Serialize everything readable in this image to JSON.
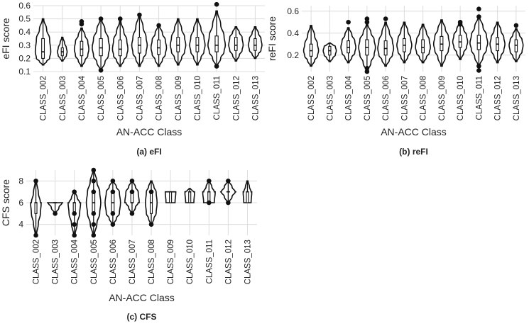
{
  "colors": {
    "ink": "#111111",
    "grid": "#dcdcdc",
    "background": "#ffffff"
  },
  "chart_data": [
    {
      "type": "violin",
      "panel_id": "a",
      "caption": "(a) eFI",
      "title": "",
      "xlabel": "AN-ACC Class",
      "ylabel": "eFI score",
      "ylim": [
        0.1,
        0.6
      ],
      "yticks": [
        0.1,
        0.2,
        0.3,
        0.4,
        0.5,
        0.6
      ],
      "categories": [
        "CLASS_002",
        "CLASS_003",
        "CLASS_004",
        "CLASS_005",
        "CLASS_006",
        "CLASS_007",
        "CLASS_008",
        "CLASS_009",
        "CLASS_010",
        "CLASS_011",
        "CLASS_012",
        "CLASS_013"
      ],
      "series": [
        {
          "category": "CLASS_002",
          "min": 0.15,
          "q1": 0.2,
          "median": 0.25,
          "q3": 0.35,
          "max": 0.5,
          "width": 0.8,
          "outliers": []
        },
        {
          "category": "CLASS_003",
          "min": 0.18,
          "q1": 0.22,
          "median": 0.25,
          "q3": 0.28,
          "max": 0.36,
          "width": 0.5,
          "outliers": []
        },
        {
          "category": "CLASS_004",
          "min": 0.14,
          "q1": 0.22,
          "median": 0.27,
          "q3": 0.33,
          "max": 0.43,
          "width": 0.75,
          "outliers": [
            0.46,
            0.48
          ]
        },
        {
          "category": "CLASS_005",
          "min": 0.11,
          "q1": 0.22,
          "median": 0.28,
          "q3": 0.35,
          "max": 0.5,
          "width": 0.9,
          "outliers": [
            0.11,
            0.5
          ]
        },
        {
          "category": "CLASS_006",
          "min": 0.14,
          "q1": 0.22,
          "median": 0.27,
          "q3": 0.34,
          "max": 0.48,
          "width": 0.8,
          "outliers": [
            0.5
          ]
        },
        {
          "category": "CLASS_007",
          "min": 0.14,
          "q1": 0.24,
          "median": 0.3,
          "q3": 0.36,
          "max": 0.53,
          "width": 0.8,
          "outliers": [
            0.53
          ]
        },
        {
          "category": "CLASS_008",
          "min": 0.14,
          "q1": 0.23,
          "median": 0.28,
          "q3": 0.34,
          "max": 0.45,
          "width": 0.8,
          "outliers": [
            0.45
          ]
        },
        {
          "category": "CLASS_009",
          "min": 0.15,
          "q1": 0.25,
          "median": 0.3,
          "q3": 0.36,
          "max": 0.5,
          "width": 0.8,
          "outliers": []
        },
        {
          "category": "CLASS_010",
          "min": 0.15,
          "q1": 0.25,
          "median": 0.3,
          "q3": 0.36,
          "max": 0.5,
          "width": 0.8,
          "outliers": []
        },
        {
          "category": "CLASS_011",
          "min": 0.14,
          "q1": 0.25,
          "median": 0.3,
          "q3": 0.37,
          "max": 0.56,
          "width": 0.9,
          "outliers": [
            0.14,
            0.61
          ]
        },
        {
          "category": "CLASS_012",
          "min": 0.18,
          "q1": 0.26,
          "median": 0.3,
          "q3": 0.36,
          "max": 0.44,
          "width": 0.75,
          "outliers": []
        },
        {
          "category": "CLASS_013",
          "min": 0.2,
          "q1": 0.26,
          "median": 0.3,
          "q3": 0.35,
          "max": 0.44,
          "width": 0.7,
          "outliers": []
        }
      ]
    },
    {
      "type": "violin",
      "panel_id": "b",
      "caption": "(b) reFI",
      "title": "",
      "xlabel": "AN-ACC Class",
      "ylabel": "reFI score",
      "ylim": [
        0.05,
        0.65
      ],
      "yticks": [
        0.2,
        0.4,
        0.6
      ],
      "categories": [
        "CLASS_002",
        "CLASS_003",
        "CLASS_004",
        "CLASS_005",
        "CLASS_006",
        "CLASS_007",
        "CLASS_008",
        "CLASS_009",
        "CLASS_010",
        "CLASS_011",
        "CLASS_012",
        "CLASS_013"
      ],
      "series": [
        {
          "category": "CLASS_002",
          "min": 0.1,
          "q1": 0.19,
          "median": 0.24,
          "q3": 0.3,
          "max": 0.47,
          "width": 0.8,
          "outliers": []
        },
        {
          "category": "CLASS_003",
          "min": 0.14,
          "q1": 0.2,
          "median": 0.24,
          "q3": 0.28,
          "max": 0.31,
          "width": 0.7,
          "outliers": []
        },
        {
          "category": "CLASS_004",
          "min": 0.13,
          "q1": 0.22,
          "median": 0.27,
          "q3": 0.33,
          "max": 0.45,
          "width": 0.8,
          "outliers": [
            0.5
          ]
        },
        {
          "category": "CLASS_005",
          "min": 0.05,
          "q1": 0.2,
          "median": 0.27,
          "q3": 0.34,
          "max": 0.48,
          "width": 0.9,
          "outliers": [
            0.05,
            0.08,
            0.5,
            0.53
          ]
        },
        {
          "category": "CLASS_006",
          "min": 0.1,
          "q1": 0.2,
          "median": 0.26,
          "q3": 0.33,
          "max": 0.5,
          "width": 0.85,
          "outliers": [
            0.53
          ]
        },
        {
          "category": "CLASS_007",
          "min": 0.13,
          "q1": 0.23,
          "median": 0.29,
          "q3": 0.35,
          "max": 0.5,
          "width": 0.8,
          "outliers": []
        },
        {
          "category": "CLASS_008",
          "min": 0.13,
          "q1": 0.22,
          "median": 0.27,
          "q3": 0.34,
          "max": 0.48,
          "width": 0.8,
          "outliers": []
        },
        {
          "category": "CLASS_009",
          "min": 0.1,
          "q1": 0.24,
          "median": 0.3,
          "q3": 0.37,
          "max": 0.52,
          "width": 0.85,
          "outliers": []
        },
        {
          "category": "CLASS_010",
          "min": 0.16,
          "q1": 0.27,
          "median": 0.32,
          "q3": 0.38,
          "max": 0.5,
          "width": 0.8,
          "outliers": [
            0.48,
            0.5
          ]
        },
        {
          "category": "CLASS_011",
          "min": 0.1,
          "q1": 0.25,
          "median": 0.31,
          "q3": 0.38,
          "max": 0.55,
          "width": 0.95,
          "outliers": [
            0.06,
            0.1,
            0.55,
            0.62
          ]
        },
        {
          "category": "CLASS_012",
          "min": 0.13,
          "q1": 0.24,
          "median": 0.3,
          "q3": 0.36,
          "max": 0.5,
          "width": 0.8,
          "outliers": []
        },
        {
          "category": "CLASS_013",
          "min": 0.14,
          "q1": 0.23,
          "median": 0.29,
          "q3": 0.34,
          "max": 0.44,
          "width": 0.75,
          "outliers": [
            0.47
          ]
        }
      ]
    },
    {
      "type": "violin",
      "panel_id": "c",
      "caption": "(c) CFS",
      "title": "",
      "xlabel": "AN-ACC Class",
      "ylabel": "CFS score",
      "ylim": [
        3,
        9
      ],
      "yticks": [
        4,
        6,
        8
      ],
      "categories": [
        "CLASS_002",
        "CLASS_003",
        "CLASS_004",
        "CLASS_005",
        "CLASS_006",
        "CLASS_007",
        "CLASS_008",
        "CLASS_009",
        "CLASS_010",
        "CLASS_011",
        "CLASS_012",
        "CLASS_013"
      ],
      "series": [
        {
          "category": "CLASS_002",
          "min": 3,
          "q1": 5,
          "median": 6,
          "q3": 6,
          "max": 8,
          "width": 0.55,
          "outliers": [
            3,
            8
          ]
        },
        {
          "category": "CLASS_003",
          "min": 5,
          "q1": 6,
          "median": 6,
          "q3": 6,
          "max": 6,
          "width": 0.85,
          "outliers": [
            5
          ]
        },
        {
          "category": "CLASS_004",
          "min": 3,
          "q1": 5,
          "median": 6,
          "q3": 6,
          "max": 7,
          "width": 0.65,
          "outliers": [
            3,
            4,
            5,
            7
          ]
        },
        {
          "category": "CLASS_005",
          "min": 3,
          "q1": 5,
          "median": 6,
          "q3": 7,
          "max": 9,
          "width": 0.75,
          "outliers": [
            3,
            4,
            5,
            7,
            8,
            9
          ]
        },
        {
          "category": "CLASS_006",
          "min": 4,
          "q1": 5,
          "median": 6,
          "q3": 7,
          "max": 8,
          "width": 0.8,
          "outliers": [
            4,
            5,
            7,
            8
          ]
        },
        {
          "category": "CLASS_007",
          "min": 5,
          "q1": 6,
          "median": 6,
          "q3": 7,
          "max": 8,
          "width": 0.75,
          "outliers": [
            5,
            7,
            8
          ]
        },
        {
          "category": "CLASS_008",
          "min": 4,
          "q1": 5,
          "median": 6,
          "q3": 7,
          "max": 8,
          "width": 0.6,
          "outliers": [
            4,
            7
          ]
        },
        {
          "category": "CLASS_009",
          "min": 6,
          "q1": 6,
          "median": 7,
          "q3": 7,
          "max": 7,
          "width": 0.55,
          "outliers": []
        },
        {
          "category": "CLASS_010",
          "min": 6,
          "q1": 6,
          "median": 7,
          "q3": 7,
          "max": 7.3,
          "width": 0.5,
          "outliers": []
        },
        {
          "category": "CLASS_011",
          "min": 6,
          "q1": 6,
          "median": 7,
          "q3": 7,
          "max": 8,
          "width": 0.65,
          "outliers": [
            6,
            8
          ]
        },
        {
          "category": "CLASS_012",
          "min": 6,
          "q1": 7,
          "median": 7,
          "q3": 7,
          "max": 8,
          "width": 0.85,
          "outliers": [
            6,
            8
          ]
        },
        {
          "category": "CLASS_013",
          "min": 6,
          "q1": 6,
          "median": 7,
          "q3": 7,
          "max": 8,
          "width": 0.45,
          "outliers": []
        }
      ]
    }
  ]
}
